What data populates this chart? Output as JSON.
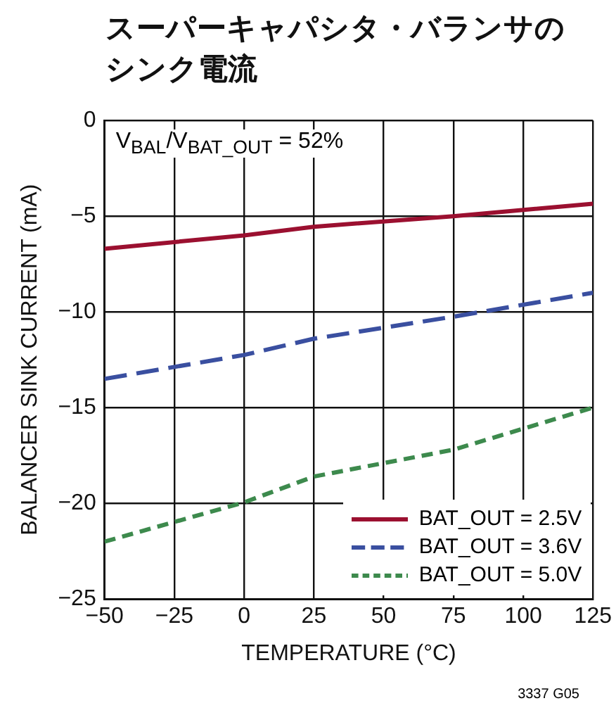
{
  "chart_data": {
    "type": "line",
    "title": "スーパーキャパシタ・バランサのシンク電流",
    "xlabel": "TEMPERATURE (°C)",
    "ylabel": "BALANCER SINK CURRENT (mA)",
    "x": [
      -50,
      0,
      25,
      75,
      125
    ],
    "series": [
      {
        "name": "BAT_OUT = 2.5V",
        "color": "#9b1030",
        "line_style": "solid",
        "values": [
          -6.7,
          -6.0,
          -5.55,
          -5.0,
          -4.35
        ]
      },
      {
        "name": "BAT_OUT = 3.6V",
        "color": "#3a4fa0",
        "line_style": "dashed",
        "values": [
          -13.5,
          -12.25,
          -11.4,
          -10.25,
          -9.0
        ]
      },
      {
        "name": "BAT_OUT = 5.0V",
        "color": "#3d8a4d",
        "line_style": "dotted",
        "values": [
          -22.0,
          -19.95,
          -18.6,
          -17.2,
          -15.0
        ]
      }
    ],
    "xlim": [
      -50,
      125
    ],
    "xticks": [
      -50,
      -25,
      0,
      25,
      50,
      75,
      100,
      125
    ],
    "ylim": [
      -25,
      0
    ],
    "yticks": [
      -25,
      -20,
      -15,
      -10,
      -5,
      0
    ],
    "grid": true,
    "legend": "bottom right",
    "marker": "none",
    "annotations": [
      "V$_{BAL}$/V$_{BAT_OUT}$ = 52%",
      "3337 G05"
    ]
  }
}
